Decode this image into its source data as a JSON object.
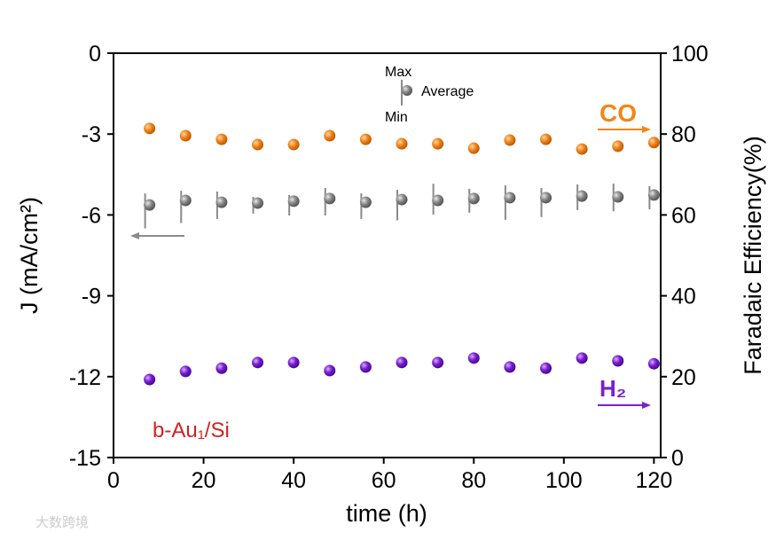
{
  "chart_data": {
    "type": "scatter",
    "xlabel": "time (h)",
    "ylabel_left": "J (mA/cm²)",
    "ylabel_right": "Faradaic Efficiency(%)",
    "xlim": [
      0,
      121.5
    ],
    "ylim_left": [
      -15,
      0
    ],
    "ylim_right": [
      0,
      100
    ],
    "xticks": [
      0,
      20,
      40,
      60,
      80,
      100,
      120
    ],
    "yticks_left": [
      0,
      -3,
      -6,
      -9,
      -12,
      -15
    ],
    "yticks_right": [
      100,
      80,
      60,
      40,
      20,
      0
    ],
    "grid": false,
    "x": [
      8,
      16,
      24,
      32,
      40,
      48,
      56,
      64,
      72,
      80,
      88,
      96,
      104,
      112,
      120
    ],
    "series": [
      {
        "name": "CO",
        "axis": "right",
        "color": "#f0861c",
        "values": [
          81.4,
          79.6,
          78.7,
          77.4,
          77.4,
          79.6,
          78.7,
          77.6,
          77.6,
          76.5,
          78.5,
          78.7,
          76.3,
          77.0,
          77.9
        ]
      },
      {
        "name": "H₂",
        "axis": "right",
        "color": "#7a1fd6",
        "values": [
          19.3,
          21.3,
          22.1,
          23.5,
          23.5,
          21.5,
          22.4,
          23.5,
          23.5,
          24.6,
          22.4,
          22.1,
          24.6,
          23.9,
          23.2
        ]
      },
      {
        "name": "Average",
        "axis": "left",
        "color": "#8a8a8a",
        "values": [
          -5.63,
          -5.46,
          -5.53,
          -5.56,
          -5.49,
          -5.39,
          -5.53,
          -5.43,
          -5.46,
          -5.39,
          -5.36,
          -5.36,
          -5.3,
          -5.33,
          -5.26
        ],
        "max": [
          -5.2,
          -5.1,
          -5.13,
          -5.33,
          -5.26,
          -5.0,
          -5.2,
          -5.07,
          -4.84,
          -5.03,
          -4.9,
          -5.0,
          -4.87,
          -4.84,
          -4.93
        ],
        "min": [
          -6.5,
          -6.3,
          -6.15,
          -5.95,
          -6.02,
          -6.02,
          -6.15,
          -6.2,
          -5.99,
          -5.92,
          -6.18,
          -6.08,
          -5.82,
          -5.86,
          -5.79
        ]
      }
    ],
    "legend": {
      "max": "Max",
      "average": "Average",
      "min": "Min"
    },
    "annotations": {
      "sample": "b-Au₁/Si",
      "sample_color": "#d42020",
      "co": "CO",
      "h2": "H₂"
    }
  },
  "watermark": "大数跨境"
}
